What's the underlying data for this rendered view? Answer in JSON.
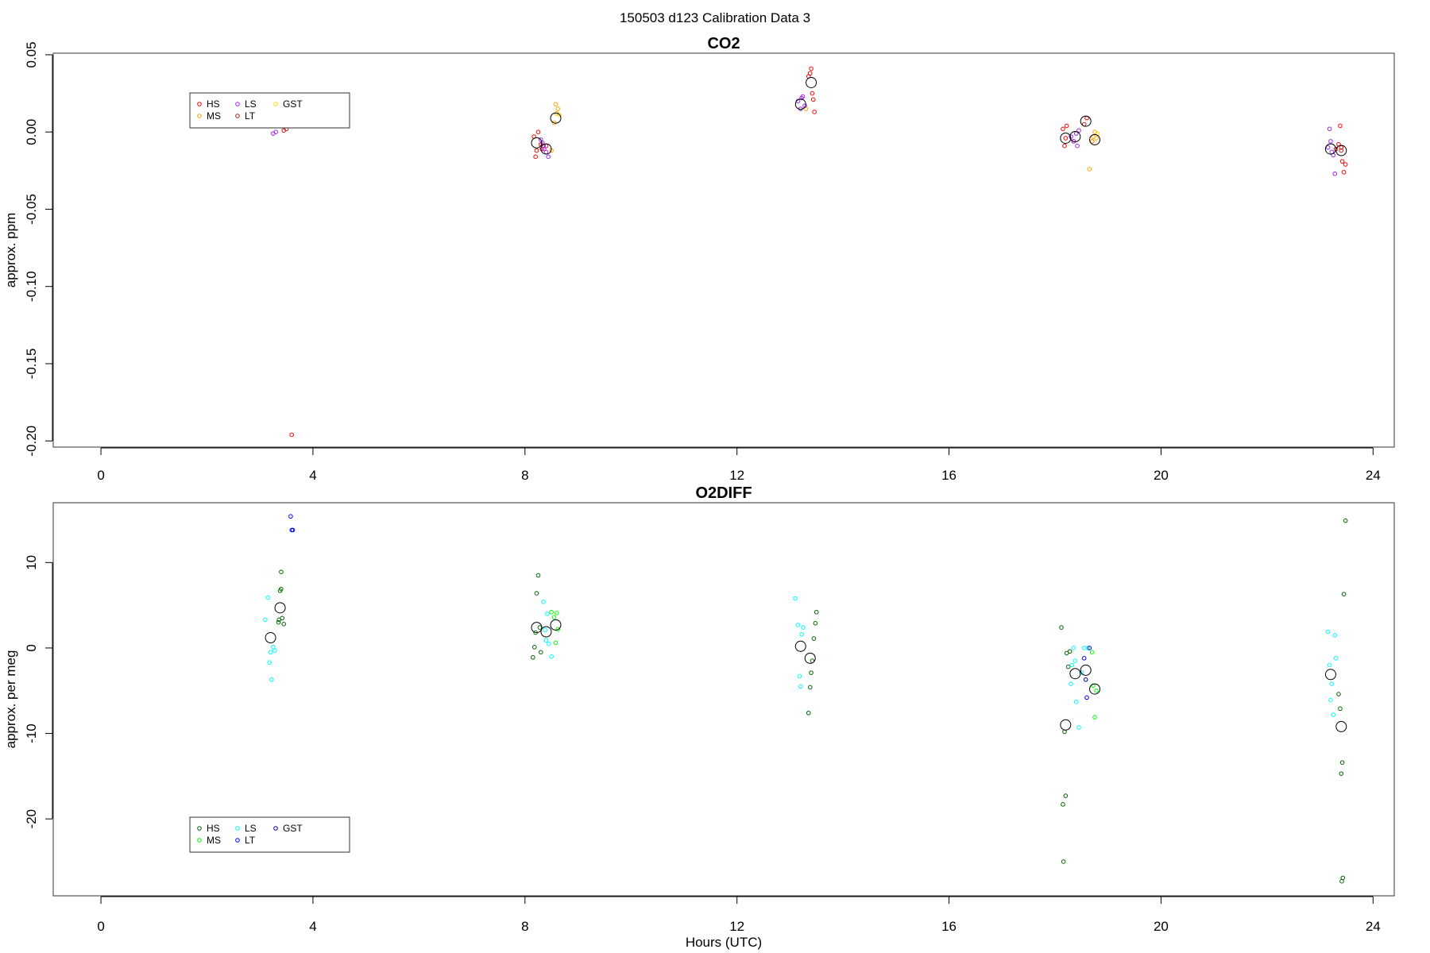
{
  "figure": {
    "title": "150503   d123   Calibration Data 3"
  },
  "chart_data": [
    {
      "type": "scatter",
      "title": "CO2",
      "xlabel": "",
      "ylabel": "approx. ppm",
      "xlim": [
        -0.9,
        24.4
      ],
      "ylim": [
        -0.204,
        0.051
      ],
      "xticks": [
        0,
        4,
        8,
        12,
        16,
        20,
        24
      ],
      "yticks": [
        -0.2,
        -0.15,
        -0.1,
        -0.05,
        0.0,
        0.05
      ],
      "ytick_labels": [
        "-0.20",
        "-0.15",
        "-0.10",
        "-0.05",
        "0.00",
        "0.05"
      ],
      "grid": false,
      "legend_position": "top-left",
      "series": [
        {
          "name": "HS",
          "color": "#ff0000",
          "points": [
            [
              3.45,
              0.001
            ],
            [
              3.6,
              -0.196
            ],
            [
              8.17,
              -0.003
            ],
            [
              8.2,
              -0.016
            ],
            [
              8.22,
              -0.012
            ],
            [
              8.25,
              0.0
            ],
            [
              8.3,
              -0.008
            ],
            [
              8.32,
              -0.011
            ],
            [
              8.4,
              -0.009
            ],
            [
              13.35,
              0.036
            ],
            [
              13.4,
              0.041
            ],
            [
              13.42,
              0.025
            ],
            [
              13.44,
              0.021
            ],
            [
              13.46,
              0.013
            ],
            [
              13.38,
              0.038
            ],
            [
              18.15,
              0.002
            ],
            [
              18.18,
              -0.009
            ],
            [
              18.2,
              -0.004
            ],
            [
              18.22,
              0.004
            ],
            [
              18.35,
              -0.006
            ],
            [
              18.6,
              0.009
            ],
            [
              18.7,
              -0.006
            ],
            [
              23.3,
              -0.011
            ],
            [
              23.35,
              -0.008
            ],
            [
              23.38,
              0.004
            ],
            [
              23.42,
              -0.019
            ],
            [
              23.45,
              -0.026
            ],
            [
              23.48,
              -0.021
            ],
            [
              23.4,
              -0.01
            ]
          ]
        },
        {
          "name": "MS",
          "color": "#ffa500",
          "points": [
            [
              8.55,
              0.006
            ],
            [
              8.58,
              0.018
            ],
            [
              8.6,
              0.012
            ],
            [
              8.62,
              0.015
            ],
            [
              8.5,
              -0.012
            ],
            [
              13.3,
              0.015
            ],
            [
              18.65,
              -0.024
            ],
            [
              18.72,
              -0.003
            ],
            [
              18.75,
              0.0
            ],
            [
              18.78,
              -0.004
            ],
            [
              18.7,
              -0.006
            ]
          ]
        },
        {
          "name": "LS",
          "color": "#a020f0",
          "points": [
            [
              3.25,
              -0.001
            ],
            [
              3.3,
              0.0
            ],
            [
              8.3,
              -0.005
            ],
            [
              8.33,
              -0.007
            ],
            [
              8.36,
              -0.011
            ],
            [
              8.4,
              -0.013
            ],
            [
              8.44,
              -0.016
            ],
            [
              8.35,
              -0.009
            ],
            [
              13.15,
              0.02
            ],
            [
              13.2,
              0.015
            ],
            [
              13.24,
              0.023
            ],
            [
              13.28,
              0.017
            ],
            [
              13.22,
              0.022
            ],
            [
              18.3,
              -0.003
            ],
            [
              18.35,
              -0.006
            ],
            [
              18.4,
              -0.001
            ],
            [
              18.45,
              0.001
            ],
            [
              18.42,
              -0.009
            ],
            [
              23.15,
              -0.01
            ],
            [
              23.18,
              0.002
            ],
            [
              23.2,
              -0.006
            ],
            [
              23.25,
              -0.015
            ],
            [
              23.28,
              -0.027
            ],
            [
              23.22,
              -0.013
            ]
          ]
        },
        {
          "name": "LT",
          "color": "#b22222",
          "points": [
            [
              3.5,
              0.002
            ],
            [
              18.55,
              0.005
            ],
            [
              23.4,
              -0.012
            ]
          ]
        },
        {
          "name": "GST",
          "color": "#ffd700",
          "points": [
            [
              8.65,
              0.011
            ],
            [
              18.8,
              -0.001
            ]
          ]
        }
      ],
      "means": [
        [
          8.22,
          -0.007
        ],
        [
          8.4,
          -0.011
        ],
        [
          8.58,
          0.009
        ],
        [
          13.2,
          0.018
        ],
        [
          13.4,
          0.032
        ],
        [
          18.2,
          -0.004
        ],
        [
          18.38,
          -0.003
        ],
        [
          18.58,
          0.007
        ],
        [
          18.75,
          -0.005
        ],
        [
          23.2,
          -0.011
        ],
        [
          23.4,
          -0.012
        ]
      ]
    },
    {
      "type": "scatter",
      "title": "O2DIFF",
      "xlabel": "Hours (UTC)",
      "ylabel": "approx. per meg",
      "xlim": [
        -0.9,
        24.4
      ],
      "ylim": [
        -29.0,
        17.0
      ],
      "xticks": [
        0,
        4,
        8,
        12,
        16,
        20,
        24
      ],
      "yticks": [
        -20,
        -10,
        0,
        10
      ],
      "ytick_labels": [
        "-20",
        "-10",
        "0",
        "10"
      ],
      "grid": false,
      "legend_position": "bottom-left",
      "series": [
        {
          "name": "HS",
          "color": "#006400",
          "points": [
            [
              3.35,
              3.0
            ],
            [
              3.38,
              6.7
            ],
            [
              3.4,
              8.9
            ],
            [
              3.42,
              3.5
            ],
            [
              3.45,
              2.8
            ],
            [
              3.4,
              6.9
            ],
            [
              3.36,
              3.3
            ],
            [
              8.15,
              -1.1
            ],
            [
              8.18,
              0.1
            ],
            [
              8.2,
              1.8
            ],
            [
              8.22,
              6.4
            ],
            [
              8.25,
              8.5
            ],
            [
              8.3,
              -0.5
            ],
            [
              8.28,
              2.4
            ],
            [
              13.35,
              -7.6
            ],
            [
              13.38,
              -4.6
            ],
            [
              13.4,
              -2.9
            ],
            [
              13.42,
              -1.5
            ],
            [
              13.45,
              1.1
            ],
            [
              13.48,
              2.9
            ],
            [
              13.5,
              4.2
            ],
            [
              18.15,
              -18.3
            ],
            [
              18.18,
              -9.8
            ],
            [
              18.2,
              -17.3
            ],
            [
              18.22,
              -0.6
            ],
            [
              18.25,
              -2.2
            ],
            [
              18.28,
              -0.4
            ],
            [
              18.12,
              2.4
            ],
            [
              18.16,
              -25.0
            ],
            [
              23.35,
              -5.4
            ],
            [
              23.38,
              -7.1
            ],
            [
              23.4,
              -14.7
            ],
            [
              23.42,
              -13.4
            ],
            [
              23.45,
              6.3
            ],
            [
              23.48,
              14.9
            ],
            [
              23.43,
              -26.9
            ],
            [
              23.41,
              -27.3
            ]
          ]
        },
        {
          "name": "MS",
          "color": "#00ff00",
          "points": [
            [
              8.5,
              4.2
            ],
            [
              8.55,
              3.6
            ],
            [
              8.6,
              4.1
            ],
            [
              8.62,
              2.2
            ],
            [
              8.58,
              0.6
            ],
            [
              18.7,
              -0.5
            ],
            [
              18.75,
              -8.1
            ],
            [
              18.78,
              -5.0
            ],
            [
              18.72,
              -4.4
            ]
          ]
        },
        {
          "name": "LS",
          "color": "#00ffff",
          "points": [
            [
              3.1,
              3.3
            ],
            [
              3.15,
              5.9
            ],
            [
              3.18,
              -1.7
            ],
            [
              3.2,
              -0.5
            ],
            [
              3.22,
              -3.7
            ],
            [
              3.25,
              0.1
            ],
            [
              3.28,
              -0.3
            ],
            [
              8.35,
              5.4
            ],
            [
              8.38,
              2.1
            ],
            [
              8.42,
              4.0
            ],
            [
              8.45,
              0.5
            ],
            [
              8.5,
              -1.0
            ],
            [
              8.4,
              0.9
            ],
            [
              13.1,
              5.8
            ],
            [
              13.15,
              2.7
            ],
            [
              13.18,
              -3.3
            ],
            [
              13.2,
              -4.5
            ],
            [
              13.22,
              1.6
            ],
            [
              13.25,
              2.4
            ],
            [
              18.3,
              -4.2
            ],
            [
              18.35,
              0.0
            ],
            [
              18.4,
              -6.3
            ],
            [
              18.45,
              -9.3
            ],
            [
              18.38,
              -1.5
            ],
            [
              18.5,
              -2.9
            ],
            [
              18.55,
              0.0
            ],
            [
              18.62,
              0.0
            ],
            [
              18.32,
              -2.0
            ],
            [
              23.15,
              1.9
            ],
            [
              23.2,
              -6.1
            ],
            [
              23.22,
              -4.2
            ],
            [
              23.25,
              -7.8
            ],
            [
              23.28,
              1.5
            ],
            [
              23.3,
              -1.2
            ],
            [
              23.18,
              -2.0
            ]
          ]
        },
        {
          "name": "LT",
          "color": "#0000ff",
          "points": [
            [
              3.58,
              15.4
            ],
            [
              3.6,
              13.8
            ],
            [
              3.62,
              13.8
            ],
            [
              18.55,
              -1.2
            ],
            [
              18.6,
              -5.8
            ],
            [
              18.65,
              0.0
            ]
          ]
        },
        {
          "name": "GST",
          "color": "#00008b",
          "points": [
            [
              18.58,
              -3.7
            ]
          ]
        }
      ],
      "means": [
        [
          3.2,
          1.2
        ],
        [
          3.38,
          4.7
        ],
        [
          8.22,
          2.4
        ],
        [
          8.4,
          1.9
        ],
        [
          8.58,
          2.7
        ],
        [
          13.2,
          0.2
        ],
        [
          13.38,
          -1.2
        ],
        [
          18.2,
          -9.0
        ],
        [
          18.38,
          -3.0
        ],
        [
          18.58,
          -2.6
        ],
        [
          18.75,
          -4.8
        ],
        [
          23.2,
          -3.1
        ],
        [
          23.4,
          -9.2
        ]
      ]
    }
  ]
}
